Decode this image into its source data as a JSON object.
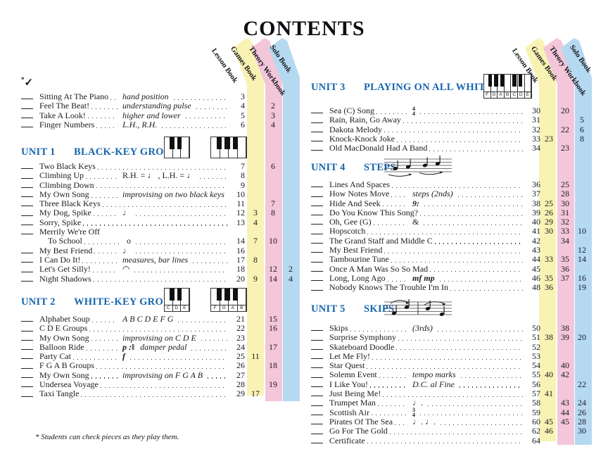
{
  "title": "CONTENTS",
  "check": {
    "asterisk": "*",
    "mark": "✓"
  },
  "footnote": "* Students can check pieces as they play them.",
  "accent_blue": "#1566ad",
  "books": [
    {
      "name": "Lesson Book",
      "color": null
    },
    {
      "name": "Games Book",
      "color": "#f8f3b4"
    },
    {
      "name": "Theory Workbook",
      "color": "#f3c6d9"
    },
    {
      "name": "Solo Book",
      "color": "#b5d9f1"
    }
  ],
  "sections": [
    {
      "id": "intro",
      "unit_label": "",
      "unit_title": "",
      "items": [
        {
          "t": "Sitting At The Piano",
          "d": "hand position",
          "pg": [
            3,
            null,
            null,
            null
          ]
        },
        {
          "t": "Feel The Beat!",
          "d": "understanding pulse",
          "pg": [
            4,
            null,
            2,
            null
          ]
        },
        {
          "t": "Take A Look!",
          "d": "higher and lower",
          "pg": [
            5,
            null,
            3,
            null
          ]
        },
        {
          "t": "Finger Numbers",
          "d": "L.H., R.H.",
          "pg": [
            6,
            null,
            4,
            null
          ]
        }
      ]
    },
    {
      "id": "unit1",
      "unit_label": "UNIT 1",
      "unit_title": "BLACK-KEY GROUPS",
      "icon": {
        "type": "keyboards",
        "keyboards": [
          {
            "whites": 3,
            "blacks": [
              1,
              2
            ],
            "labels": []
          },
          {
            "whites": 4,
            "blacks": [
              1,
              2,
              3
            ],
            "labels": []
          }
        ]
      },
      "items": [
        {
          "t": "Two Black Keys",
          "pg": [
            7,
            null,
            6,
            null
          ]
        },
        {
          "t": "Climbing Up",
          "s": "R.H. = ♩ , L.H. = ♩",
          "pg": [
            8,
            null,
            null,
            null
          ]
        },
        {
          "t": "Climbing Down",
          "pg": [
            9,
            null,
            null,
            null
          ]
        },
        {
          "t": "My Own Song",
          "d": "improvising on two black keys",
          "pg": [
            10,
            null,
            null,
            null
          ]
        },
        {
          "t": "Three Black Keys",
          "pg": [
            11,
            null,
            7,
            null
          ]
        },
        {
          "t": "My Dog, Spike",
          "s": "♩",
          "pg": [
            12,
            3,
            8,
            null
          ]
        },
        {
          "t": "Sorry, Spike",
          "pg": [
            13,
            4,
            null,
            null
          ]
        },
        {
          "t": "Merrily We're Off",
          "nodots": true,
          "pg": null
        },
        {
          "t": "To School",
          "indent": true,
          "s": "o",
          "pg": [
            14,
            7,
            10,
            null
          ]
        },
        {
          "t": "My Best Friend",
          "s": "♩",
          "pg": [
            16,
            null,
            null,
            null
          ]
        },
        {
          "t": "I Can Do It!",
          "d": "measures, bar lines",
          "pg": [
            17,
            8,
            null,
            null
          ]
        },
        {
          "t": "Let's Get Silly!",
          "s": "◠",
          "pg": [
            18,
            null,
            12,
            2
          ]
        },
        {
          "t": "Night Shadows",
          "pg": [
            20,
            9,
            14,
            4
          ]
        }
      ]
    },
    {
      "id": "unit2",
      "unit_label": "UNIT 2",
      "unit_title": "WHITE-KEY GROUPS",
      "icon": {
        "type": "keyboards",
        "keyboards": [
          {
            "whites": 3,
            "blacks": [
              1,
              2
            ],
            "labels": [
              "C",
              "D",
              "E"
            ]
          },
          {
            "whites": 4,
            "blacks": [
              1,
              2,
              3
            ],
            "labels": [
              "F",
              "G",
              "A",
              "B"
            ]
          }
        ]
      },
      "items": [
        {
          "t": "Alphabet Soup",
          "d": "A B C D E F G",
          "pg": [
            21,
            null,
            15,
            null
          ]
        },
        {
          "t": "C D E Groups",
          "pg": [
            22,
            null,
            16,
            null
          ]
        },
        {
          "t": "My Own Song",
          "d": "improvising on C D E",
          "pg": [
            23,
            null,
            null,
            null
          ]
        },
        {
          "t": "Balloon Ride",
          "s": "p  :‖",
          "sbi": true,
          "d": "damper pedal",
          "pg": [
            24,
            null,
            17,
            null
          ]
        },
        {
          "t": "Party Cat",
          "s": "f",
          "sbi": true,
          "pg": [
            25,
            11,
            null,
            null
          ]
        },
        {
          "t": "F G A B Groups",
          "pg": [
            26,
            null,
            18,
            null
          ]
        },
        {
          "t": "My Own Song",
          "d": "improvising on F G A B",
          "pg": [
            27,
            null,
            null,
            null
          ]
        },
        {
          "t": "Undersea Voyage",
          "pg": [
            28,
            null,
            19,
            null
          ]
        },
        {
          "t": "Taxi Tangle",
          "pg": [
            29,
            17,
            null,
            null
          ]
        }
      ]
    },
    {
      "id": "unit3",
      "unit_label": "UNIT 3",
      "unit_title": "PLAYING ON ALL WHITE KEYS",
      "icon": {
        "type": "keyboards",
        "keyboards": [
          {
            "whites": 7,
            "blacks": [
              1,
              2,
              3,
              5,
              6
            ],
            "labels": [
              "F",
              "G",
              "A",
              "B",
              "C",
              "D",
              "E"
            ]
          }
        ]
      },
      "items": [
        {
          "t": "Sea (C) Song",
          "f": [
            "4",
            "4"
          ],
          "pg": [
            30,
            null,
            20,
            null
          ]
        },
        {
          "t": "Rain, Rain, Go Away",
          "pg": [
            31,
            null,
            null,
            5
          ]
        },
        {
          "t": "Dakota Melody",
          "pg": [
            32,
            null,
            22,
            6
          ]
        },
        {
          "t": "Knock-Knock Joke",
          "pg": [
            33,
            23,
            null,
            8
          ]
        },
        {
          "t": "Old MacDonald Had A Band",
          "pg": [
            34,
            null,
            23,
            null
          ]
        }
      ]
    },
    {
      "id": "unit4",
      "unit_label": "UNIT 4",
      "unit_title": "STEPS",
      "icon": {
        "type": "staff",
        "variant": "steps"
      },
      "items": [
        {
          "t": "Lines And Spaces",
          "pg": [
            36,
            null,
            25,
            null
          ]
        },
        {
          "t": "How Notes Move",
          "d": "steps (2nds)",
          "pg": [
            37,
            null,
            28,
            null
          ]
        },
        {
          "t": "Hide And Seek",
          "s": "9:",
          "sbi": true,
          "pg": [
            38,
            25,
            30,
            null
          ]
        },
        {
          "t": "Do You Know This Song?",
          "pg": [
            39,
            26,
            31,
            null
          ]
        },
        {
          "t": "Oh, Gee (G)",
          "s": "&",
          "pg": [
            40,
            29,
            32,
            null
          ]
        },
        {
          "t": "Hopscotch",
          "pg": [
            41,
            30,
            33,
            10
          ]
        },
        {
          "t": "The Grand Staff and Middle C",
          "pg": [
            42,
            null,
            34,
            null
          ]
        },
        {
          "t": "My Best Friend",
          "pg": [
            43,
            null,
            null,
            12
          ]
        },
        {
          "t": "Tambourine Tune",
          "pg": [
            44,
            33,
            35,
            14
          ]
        },
        {
          "t": "Once A Man Was So So Mad",
          "pg": [
            45,
            null,
            36,
            null
          ]
        },
        {
          "t": "Long, Long Ago",
          "s": "mf  mp",
          "sbi": true,
          "pg": [
            46,
            35,
            37,
            16
          ]
        },
        {
          "t": "Nobody Knows The Trouble I'm In",
          "pg": [
            48,
            36,
            null,
            19
          ]
        }
      ]
    },
    {
      "id": "unit5",
      "unit_label": "UNIT 5",
      "unit_title": "SKIPS",
      "icon": {
        "type": "staff",
        "variant": "skips"
      },
      "items": [
        {
          "t": "Skips",
          "d": "(3rds)",
          "pg": [
            50,
            null,
            38,
            null
          ]
        },
        {
          "t": "Surprise Symphony",
          "pg": [
            51,
            38,
            39,
            20
          ]
        },
        {
          "t": "Skateboard Doodle",
          "pg": [
            52,
            null,
            null,
            null
          ]
        },
        {
          "t": "Let Me Fly!",
          "pg": [
            53,
            null,
            null,
            null
          ]
        },
        {
          "t": "Star Quest",
          "pg": [
            54,
            null,
            40,
            null
          ]
        },
        {
          "t": "Solemn Event",
          "d": "tempo marks",
          "pg": [
            55,
            40,
            42,
            null
          ]
        },
        {
          "t": "I Like You!",
          "d": "D.C. al Fine",
          "pg": [
            56,
            null,
            null,
            22
          ]
        },
        {
          "t": "Just Being Me!",
          "pg": [
            57,
            41,
            null,
            null
          ]
        },
        {
          "t": "Trumpet Man",
          "s": "♩.",
          "pg": [
            58,
            null,
            43,
            24
          ]
        },
        {
          "t": "Scottish Air",
          "f": [
            "3",
            "4"
          ],
          "pg": [
            59,
            null,
            44,
            26
          ]
        },
        {
          "t": "Pirates Of The Sea",
          "s": "♩.  ♩.",
          "pg": [
            60,
            45,
            45,
            28
          ]
        },
        {
          "t": "Go For The Gold",
          "pg": [
            62,
            46,
            null,
            30
          ]
        },
        {
          "t": "Certificate",
          "pg": [
            64,
            null,
            null,
            null
          ]
        }
      ]
    }
  ]
}
